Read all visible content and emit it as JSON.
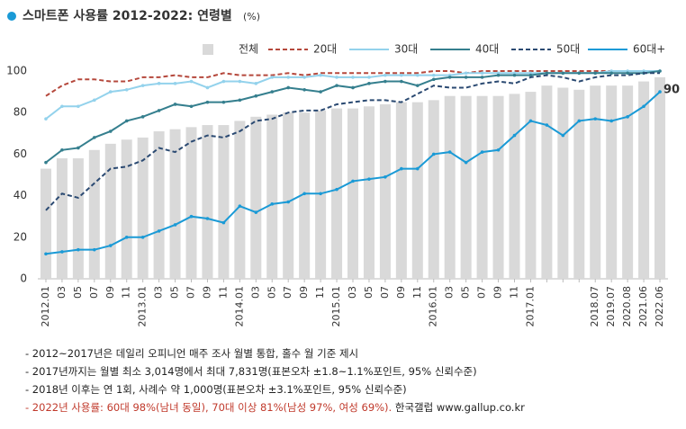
{
  "chart_data": {
    "type": "bar-line",
    "title": "스마트폰 사용률 2012-2022: 연령별",
    "unit": "(%)",
    "categories": [
      "2012.01",
      "03",
      "05",
      "07",
      "09",
      "11",
      "2013.01",
      "03",
      "05",
      "07",
      "09",
      "11",
      "2014.01",
      "03",
      "05",
      "07",
      "09",
      "11",
      "2015.01",
      "03",
      "05",
      "07",
      "09",
      "11",
      "2016.01",
      "03",
      "05",
      "07",
      "09",
      "11",
      "2017.01",
      null,
      null,
      null,
      "2018.07",
      "2019.07",
      "2020.08",
      "2021.06",
      "2022.06"
    ],
    "ylim": [
      0,
      100
    ],
    "yticks": [
      0,
      20,
      40,
      60,
      80,
      100
    ],
    "grid": false,
    "series": [
      {
        "name": "전체",
        "kind": "bar",
        "color": "#d9d9d9",
        "values": [
          53,
          58,
          58,
          62,
          65,
          67,
          68,
          71,
          72,
          73,
          74,
          74,
          76,
          78,
          79,
          80,
          80,
          81,
          82,
          82,
          83,
          84,
          85,
          85,
          86,
          88,
          88,
          88,
          88,
          89,
          90,
          93,
          92,
          91,
          93,
          93,
          93,
          95,
          97
        ]
      },
      {
        "name": "20대",
        "kind": "line",
        "dash": true,
        "color": "#b5483c",
        "values": [
          88,
          93,
          96,
          96,
          95,
          95,
          97,
          97,
          98,
          97,
          97,
          99,
          98,
          98,
          98,
          99,
          98,
          99,
          99,
          99,
          99,
          99,
          99,
          99,
          100,
          100,
          99,
          100,
          100,
          100,
          100,
          100,
          100,
          100,
          100,
          100,
          100,
          100,
          100
        ]
      },
      {
        "name": "30대",
        "kind": "line",
        "dash": false,
        "color": "#93d2ec",
        "values": [
          77,
          83,
          83,
          86,
          90,
          91,
          93,
          94,
          94,
          95,
          92,
          95,
          95,
          94,
          97,
          97,
          97,
          98,
          97,
          97,
          97,
          98,
          98,
          98,
          98,
          98,
          99,
          99,
          99,
          99,
          99,
          99,
          99,
          99,
          99,
          100,
          100,
          100,
          100
        ]
      },
      {
        "name": "40대",
        "kind": "line",
        "dash": false,
        "color": "#357f8e",
        "values": [
          56,
          62,
          63,
          68,
          71,
          76,
          78,
          81,
          84,
          83,
          85,
          85,
          86,
          88,
          90,
          92,
          91,
          90,
          93,
          92,
          94,
          95,
          95,
          93,
          96,
          97,
          97,
          97,
          98,
          98,
          98,
          99,
          99,
          99,
          99,
          99,
          99,
          99,
          100
        ]
      },
      {
        "name": "50대",
        "kind": "line",
        "dash": true,
        "color": "#2b4a72",
        "values": [
          33,
          41,
          39,
          46,
          53,
          54,
          57,
          63,
          61,
          66,
          69,
          68,
          71,
          76,
          77,
          80,
          81,
          81,
          84,
          85,
          86,
          86,
          85,
          89,
          93,
          92,
          92,
          94,
          95,
          94,
          97,
          98,
          97,
          95,
          97,
          98,
          98,
          99,
          99
        ]
      },
      {
        "name": "60대+",
        "kind": "line",
        "dash": false,
        "color": "#1a9ad6",
        "values": [
          12,
          13,
          14,
          14,
          16,
          20,
          20,
          23,
          26,
          30,
          29,
          27,
          35,
          32,
          36,
          37,
          41,
          41,
          43,
          47,
          48,
          49,
          53,
          53,
          60,
          61,
          56,
          61,
          62,
          69,
          76,
          74,
          69,
          76,
          77,
          76,
          78,
          83,
          90
        ],
        "value_labels": [
          null,
          null,
          null,
          null,
          null,
          null,
          null,
          null,
          null,
          null,
          null,
          null,
          null,
          null,
          null,
          null,
          null,
          null,
          null,
          null,
          null,
          null,
          null,
          null,
          null,
          null,
          null,
          null,
          null,
          null,
          null,
          null,
          null,
          null,
          null,
          null,
          null,
          null,
          "90"
        ]
      }
    ],
    "notes": [
      [
        {
          "text": "- 2012~2017년은 데일리 오피니언 매주 조사 월별 통합, 홀수 월 기준 제시",
          "color": "#222222"
        }
      ],
      [
        {
          "text": "- 2017년까지는 월별 최소 3,014명에서 최대 7,831명(표본오차 ±1.8~1.1%포인트, 95% 신뢰수준)",
          "color": "#222222"
        }
      ],
      [
        {
          "text": "- 2018년 이후는 연 1회, 사례수 약 1,000명(표본오차 ±3.1%포인트, 95% 신뢰수준)",
          "color": "#222222"
        }
      ],
      [
        {
          "text": "- 2022년 사용률: 60대 98%(남녀 동일), 70대 이상 81%(남성 97%, 여성 69%).",
          "color": "#c0392b"
        },
        {
          "text": " 한국갤럽 www.gallup.co.kr",
          "color": "#222222"
        }
      ]
    ]
  }
}
